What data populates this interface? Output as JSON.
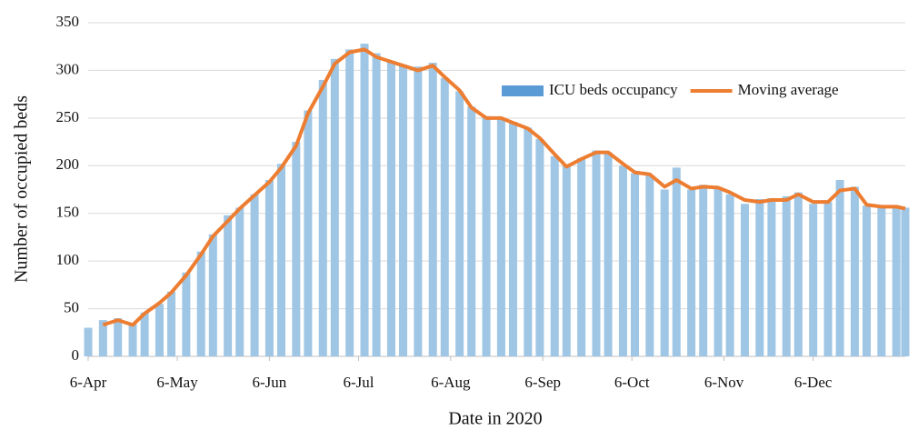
{
  "chart_data": {
    "type": "bar_line",
    "x_label": "Date in 2020",
    "y_label": "Number of occupied beds",
    "x": [
      0,
      5,
      10,
      15,
      19,
      24,
      28,
      33,
      38,
      42,
      47,
      51,
      56,
      61,
      65,
      70,
      74,
      79,
      83,
      88,
      93,
      97,
      102,
      106,
      111,
      116,
      120,
      125,
      129,
      134,
      139,
      143,
      148,
      152,
      157,
      161,
      166,
      171,
      175,
      180,
      184,
      189,
      194,
      198,
      203,
      207,
      212,
      216,
      221,
      226,
      230,
      235,
      239,
      244,
      249,
      253,
      258,
      262,
      267,
      272,
      275
    ],
    "series": [
      {
        "name": "ICU beds occupancy",
        "kind": "bar",
        "color": "#9fc6e4",
        "legend_color": "#5b9bd5",
        "values": [
          30,
          38,
          40,
          34,
          46,
          55,
          68,
          88,
          110,
          128,
          148,
          156,
          170,
          185,
          202,
          225,
          258,
          290,
          312,
          322,
          328,
          318,
          310,
          306,
          304,
          308,
          292,
          278,
          262,
          252,
          250,
          246,
          240,
          228,
          210,
          200,
          208,
          216,
          214,
          200,
          192,
          190,
          175,
          198,
          175,
          180,
          176,
          170,
          160,
          165,
          166,
          168,
          172,
          160,
          162,
          185,
          178,
          158,
          158,
          156,
          156
        ]
      },
      {
        "name": "Moving average",
        "kind": "line",
        "color": "#ed7d31",
        "values": [
          null,
          33,
          38,
          33,
          45,
          56,
          67,
          85,
          107,
          126,
          142,
          155,
          169,
          183,
          198,
          221,
          255,
          283,
          307,
          319,
          322,
          314,
          309,
          305,
          300,
          305,
          293,
          279,
          261,
          250,
          250,
          245,
          239,
          229,
          212,
          199,
          207,
          214,
          214,
          202,
          193,
          191,
          178,
          185,
          176,
          178,
          177,
          172,
          164,
          162,
          164,
          164,
          170,
          162,
          162,
          174,
          176,
          159,
          157,
          157,
          155
        ]
      }
    ],
    "xlim": [
      0,
      275
    ],
    "xticks": [
      {
        "value": 0,
        "label": "6-Apr"
      },
      {
        "value": 30,
        "label": "6-May"
      },
      {
        "value": 61,
        "label": "6-Jun"
      },
      {
        "value": 91,
        "label": "6-Jul"
      },
      {
        "value": 122,
        "label": "6-Aug"
      },
      {
        "value": 153,
        "label": "6-Sep"
      },
      {
        "value": 183,
        "label": "6-Oct"
      },
      {
        "value": 214,
        "label": "6-Nov"
      },
      {
        "value": 244,
        "label": "6-Dec"
      }
    ],
    "ylim": [
      0,
      350
    ],
    "yticks": [
      0,
      50,
      100,
      150,
      200,
      250,
      300,
      350
    ],
    "grid": true,
    "legend": "top-right"
  }
}
